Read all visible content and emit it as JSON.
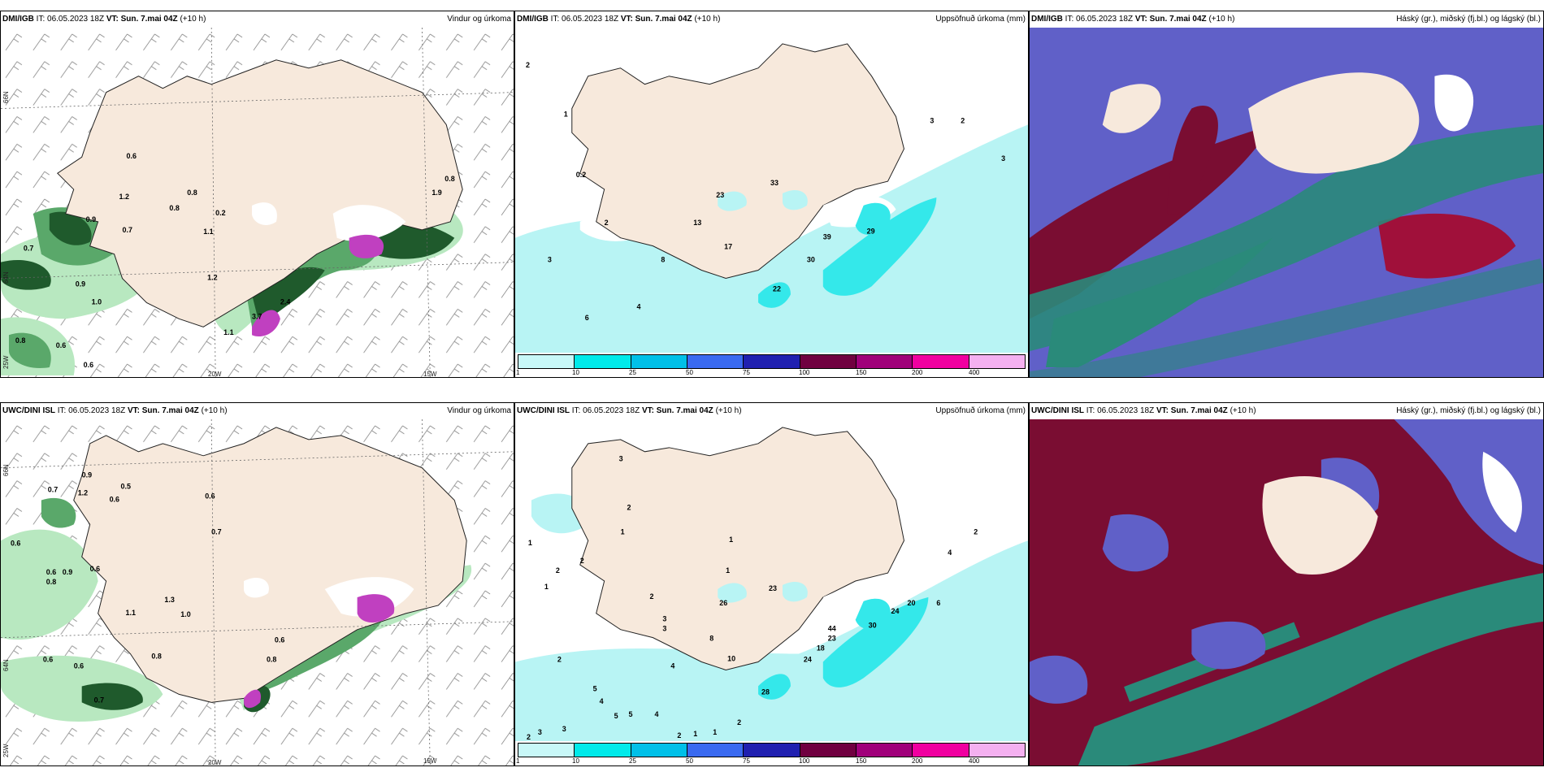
{
  "panels": [
    {
      "model": "DMI/IGB",
      "it_label": "IT:",
      "it_value": "06.05.2023 18Z",
      "vt_label": "VT:",
      "vt_value": "Sun. 7.mai 04Z",
      "lead": "(+10 h)",
      "title": "Vindur og úrkoma"
    },
    {
      "model": "DMI/IGB",
      "it_label": "IT:",
      "it_value": "06.05.2023 18Z",
      "vt_label": "VT:",
      "vt_value": "Sun. 7.mai 04Z",
      "lead": "(+10 h)",
      "title": "Uppsöfnuð úrkoma (mm)"
    },
    {
      "model": "DMI/IGB",
      "it_label": "IT:",
      "it_value": "06.05.2023 18Z",
      "vt_label": "VT:",
      "vt_value": "Sun. 7.mai 04Z",
      "lead": "(+10 h)",
      "title": "Háský (gr.), miðský (fj.bl.) og lágský (bl.)"
    },
    {
      "model": "UWC/DINI ISL",
      "it_label": "IT:",
      "it_value": "06.05.2023 18Z",
      "vt_label": "VT:",
      "vt_value": "Sun. 7.mai 04Z",
      "lead": "(+10 h)",
      "title": "Vindur og úrkoma"
    },
    {
      "model": "UWC/DINI ISL",
      "it_label": "IT:",
      "it_value": "06.05.2023 18Z",
      "vt_label": "VT:",
      "vt_value": "Sun. 7.mai 04Z",
      "lead": "(+10 h)",
      "title": "Uppsöfnuð úrkoma (mm)"
    },
    {
      "model": "UWC/DINI ISL",
      "it_label": "IT:",
      "it_value": "06.05.2023 18Z",
      "vt_label": "VT:",
      "vt_value": "Sun. 7.mai 04Z",
      "lead": "(+10 h)",
      "title": "Háský (gr.), miðský (fj.bl.) og lágský (bl.)"
    }
  ],
  "axes": {
    "lat_66": "66N",
    "lat_64": "64N",
    "lon_20": "20W",
    "lon_15": "15W",
    "lon_25": "25W"
  },
  "legend": {
    "ticks": [
      "1",
      "10",
      "25",
      "50",
      "75",
      "100",
      "150",
      "200",
      "400"
    ],
    "colors": [
      "#c8f8f8",
      "#00eaea",
      "#00c0e8",
      "#3a6af0",
      "#2020b0",
      "#700040",
      "#a0007a",
      "#f000a0",
      "#f4b0f0"
    ]
  },
  "wind_precip_values": {
    "dmi": [
      "0.6",
      "0.8",
      "0.8",
      "0.9",
      "0.7",
      "0.7",
      "0.9",
      "1.0",
      "0.8",
      "0.6",
      "0.6",
      "1.2",
      "0.8",
      "1.9",
      "1.1",
      "3.7",
      "2.4",
      "1.1",
      "1.2",
      "0.2"
    ],
    "uwc": [
      "0.9",
      "1.2",
      "0.5",
      "0.6",
      "0.7",
      "0.6",
      "0.6",
      "0.6",
      "0.9",
      "0.8",
      "0.6",
      "0.7",
      "0.6",
      "1.1",
      "1.0",
      "0.6",
      "0.8",
      "0.6",
      "0.7",
      "1.3",
      "0.8"
    ]
  },
  "accum_values": {
    "dmi": [
      "2",
      "1",
      "0.2",
      "2",
      "3",
      "8",
      "4",
      "6",
      "13",
      "23",
      "33",
      "17",
      "39",
      "30",
      "29",
      "22",
      "3",
      "2",
      "3"
    ],
    "uwc": [
      "3",
      "2",
      "1",
      "1",
      "2",
      "2",
      "1",
      "1",
      "2",
      "3",
      "3",
      "4",
      "1",
      "2",
      "3",
      "26",
      "23",
      "8",
      "10",
      "44",
      "23",
      "18",
      "24",
      "30",
      "24",
      "20",
      "6",
      "4",
      "2",
      "5",
      "4",
      "5",
      "5",
      "4",
      "3",
      "2",
      "1",
      "1",
      "2",
      "2",
      "28"
    ]
  },
  "colors": {
    "land": "#f7e9dc",
    "coast": "#222222",
    "green_dark": "#1f5a2c",
    "green_mid": "#5aa86a",
    "green_light": "#b8e8c0",
    "cyan_light": "#b8f4f4",
    "cyan_mid": "#34e8ea",
    "cloud_high": "#7a0d32",
    "cloud_mid": "#6060c8",
    "cloud_low": "#2a8a7a"
  }
}
